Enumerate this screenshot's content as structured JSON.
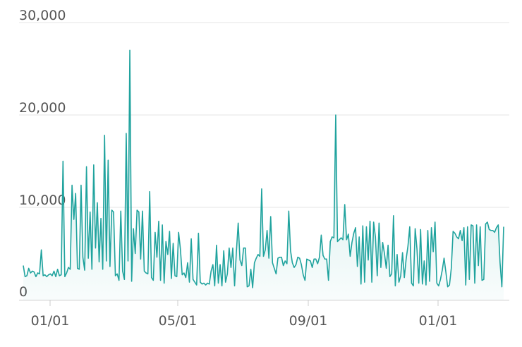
{
  "chart_data": {
    "type": "area",
    "x_ticks": [
      "01/01",
      "05/01",
      "09/01",
      "01/01"
    ],
    "y_ticks": [
      "0",
      "10,000",
      "20,000",
      "30,000"
    ],
    "ylim": [
      0,
      30000
    ],
    "grid": true,
    "legend": "none",
    "colors": {
      "line": "#20a39e",
      "fill": "#20a39e",
      "grid": "#e6e6e6",
      "axis": "#cccccc"
    },
    "series": [
      {
        "values": [
          3700,
          2500,
          2600,
          3400,
          2900,
          3100,
          3000,
          2500,
          2900,
          2800,
          5400,
          2600,
          2700,
          2500,
          2700,
          2800,
          2600,
          3100,
          2500,
          3300,
          2600,
          2700,
          15000,
          2500,
          2900,
          3500,
          3300,
          12400,
          8700,
          11500,
          3400,
          3300,
          12400,
          4600,
          3200,
          14400,
          4500,
          9500,
          3300,
          14600,
          5600,
          10500,
          4100,
          8800,
          3300,
          17800,
          4200,
          15100,
          3600,
          9700,
          9500,
          2600,
          2800,
          2100,
          9600,
          3100,
          2200,
          18000,
          4200,
          27000,
          2000,
          7700,
          5000,
          9700,
          9500,
          4400,
          9600,
          3100,
          2900,
          2800,
          11700,
          2400,
          2100,
          7300,
          4600,
          8500,
          2100,
          8100,
          1800,
          6300,
          4900,
          7400,
          2300,
          6100,
          2600,
          2500,
          7300,
          5500,
          2700,
          2900,
          2400,
          4000,
          1900,
          6600,
          2200,
          1900,
          1600,
          7200,
          1900,
          1700,
          1800,
          1600,
          1800,
          1700,
          3100,
          3800,
          1500,
          5900,
          1800,
          3800,
          1500,
          5300,
          1900,
          2800,
          5600,
          3500,
          5600,
          1500,
          5200,
          8300,
          4300,
          3700,
          5600,
          5600,
          1400,
          1500,
          3300,
          1300,
          4000,
          4500,
          4900,
          4700,
          12000,
          4700,
          5400,
          7500,
          4500,
          9000,
          4000,
          3400,
          2800,
          4500,
          4600,
          4600,
          3700,
          4200,
          3900,
          9600,
          5300,
          4000,
          3500,
          3800,
          4600,
          4500,
          3800,
          2700,
          2100,
          4400,
          4300,
          4200,
          3500,
          4400,
          4400,
          3900,
          4600,
          7000,
          4800,
          4400,
          4400,
          2100,
          6300,
          6800,
          6700,
          20000,
          6300,
          6500,
          6700,
          6500,
          10300,
          6500,
          7100,
          4700,
          6200,
          7200,
          7800,
          3600,
          6800,
          1700,
          8000,
          1900,
          7900,
          4300,
          8500,
          1900,
          8400,
          6800,
          2600,
          8300,
          3500,
          6200,
          5000,
          3400,
          5900,
          2500,
          2800,
          9100,
          1500,
          4900,
          1900,
          2600,
          5100,
          2400,
          4400,
          5800,
          7900,
          1800,
          1500,
          7700,
          5500,
          1800,
          7600,
          1700,
          4200,
          1600,
          7500,
          2000,
          7800,
          5200,
          8400,
          1800,
          1500,
          2200,
          3200,
          4500,
          3000,
          1400,
          1600,
          3400,
          7400,
          7200,
          6800,
          6600,
          7500,
          6400,
          7800,
          1600,
          7900,
          2200,
          8100,
          8000,
          1800,
          8100,
          3700,
          7900,
          2100,
          2200,
          8200,
          8400,
          7600,
          7500,
          7500,
          7300,
          7800,
          8100,
          4000,
          1400,
          7900
        ]
      }
    ]
  }
}
